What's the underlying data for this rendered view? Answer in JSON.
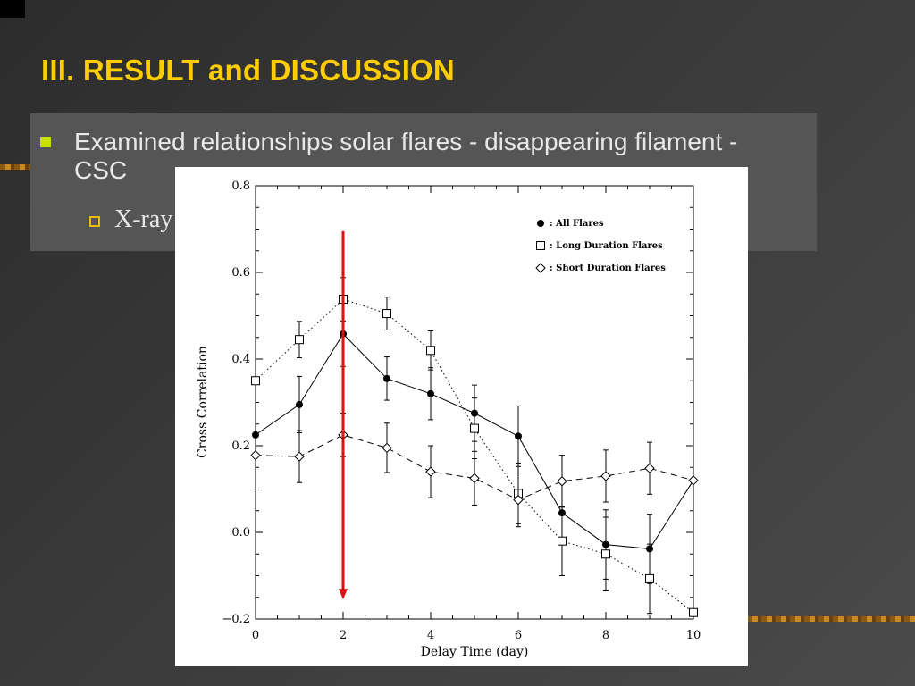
{
  "slide": {
    "title": "III. RESULT and DISCUSSION",
    "bullet1": "Examined relationships solar flares - disappearing filament  - CSC",
    "bullet2": "X-ray"
  },
  "colors": {
    "title": "#ffcc00",
    "bullet_square": "#c8e000",
    "arrow": "#dd1111"
  },
  "chart_data": {
    "type": "line",
    "xlabel": "Delay Time (day)",
    "ylabel": "Cross Correlation",
    "xlim": [
      0,
      10
    ],
    "ylim": [
      -0.2,
      0.8
    ],
    "x_ticks": [
      "0",
      "2",
      "4",
      "6",
      "8",
      "10"
    ],
    "y_ticks": [
      "−0.2",
      "0.0",
      "0.2",
      "0.4",
      "0.6",
      "0.8"
    ],
    "legend_position": "top-right",
    "x": [
      0,
      1,
      2,
      3,
      4,
      5,
      6,
      7,
      8,
      9,
      10
    ],
    "series": [
      {
        "name": "All Flares",
        "legend_label": ":  All Flares",
        "marker": "filled-circle",
        "line": "solid",
        "values": [
          0.225,
          0.295,
          0.458,
          0.355,
          0.32,
          0.275,
          0.222,
          0.045,
          -0.028,
          -0.038,
          0.12
        ],
        "errors": [
          0.0,
          0.065,
          0.075,
          0.05,
          0.06,
          0.065,
          0.07,
          0.07,
          0.08,
          0.08,
          0.0
        ]
      },
      {
        "name": "Long Duration Flares",
        "legend_label": ":  Long Duration Flares",
        "marker": "open-square",
        "line": "dotted",
        "values": [
          0.35,
          0.445,
          0.538,
          0.505,
          0.42,
          0.24,
          0.09,
          -0.02,
          -0.05,
          -0.107,
          -0.185
        ],
        "errors": [
          0.0,
          0.042,
          0.05,
          0.038,
          0.045,
          0.07,
          0.07,
          0.08,
          0.085,
          0.08,
          0.0
        ]
      },
      {
        "name": "Short Duration Flares",
        "legend_label": ":  Short Duration Flares",
        "marker": "open-diamond",
        "line": "dashed",
        "values": [
          0.178,
          0.175,
          0.225,
          0.195,
          0.14,
          0.125,
          0.075,
          0.118,
          0.13,
          0.148,
          0.12
        ],
        "errors": [
          0.0,
          0.06,
          0.05,
          0.057,
          0.06,
          0.062,
          0.062,
          0.06,
          0.06,
          0.06,
          0.0
        ]
      }
    ],
    "annotation": {
      "type": "arrow",
      "x": 2,
      "y_from": 0.695,
      "y_to": -0.155
    }
  }
}
